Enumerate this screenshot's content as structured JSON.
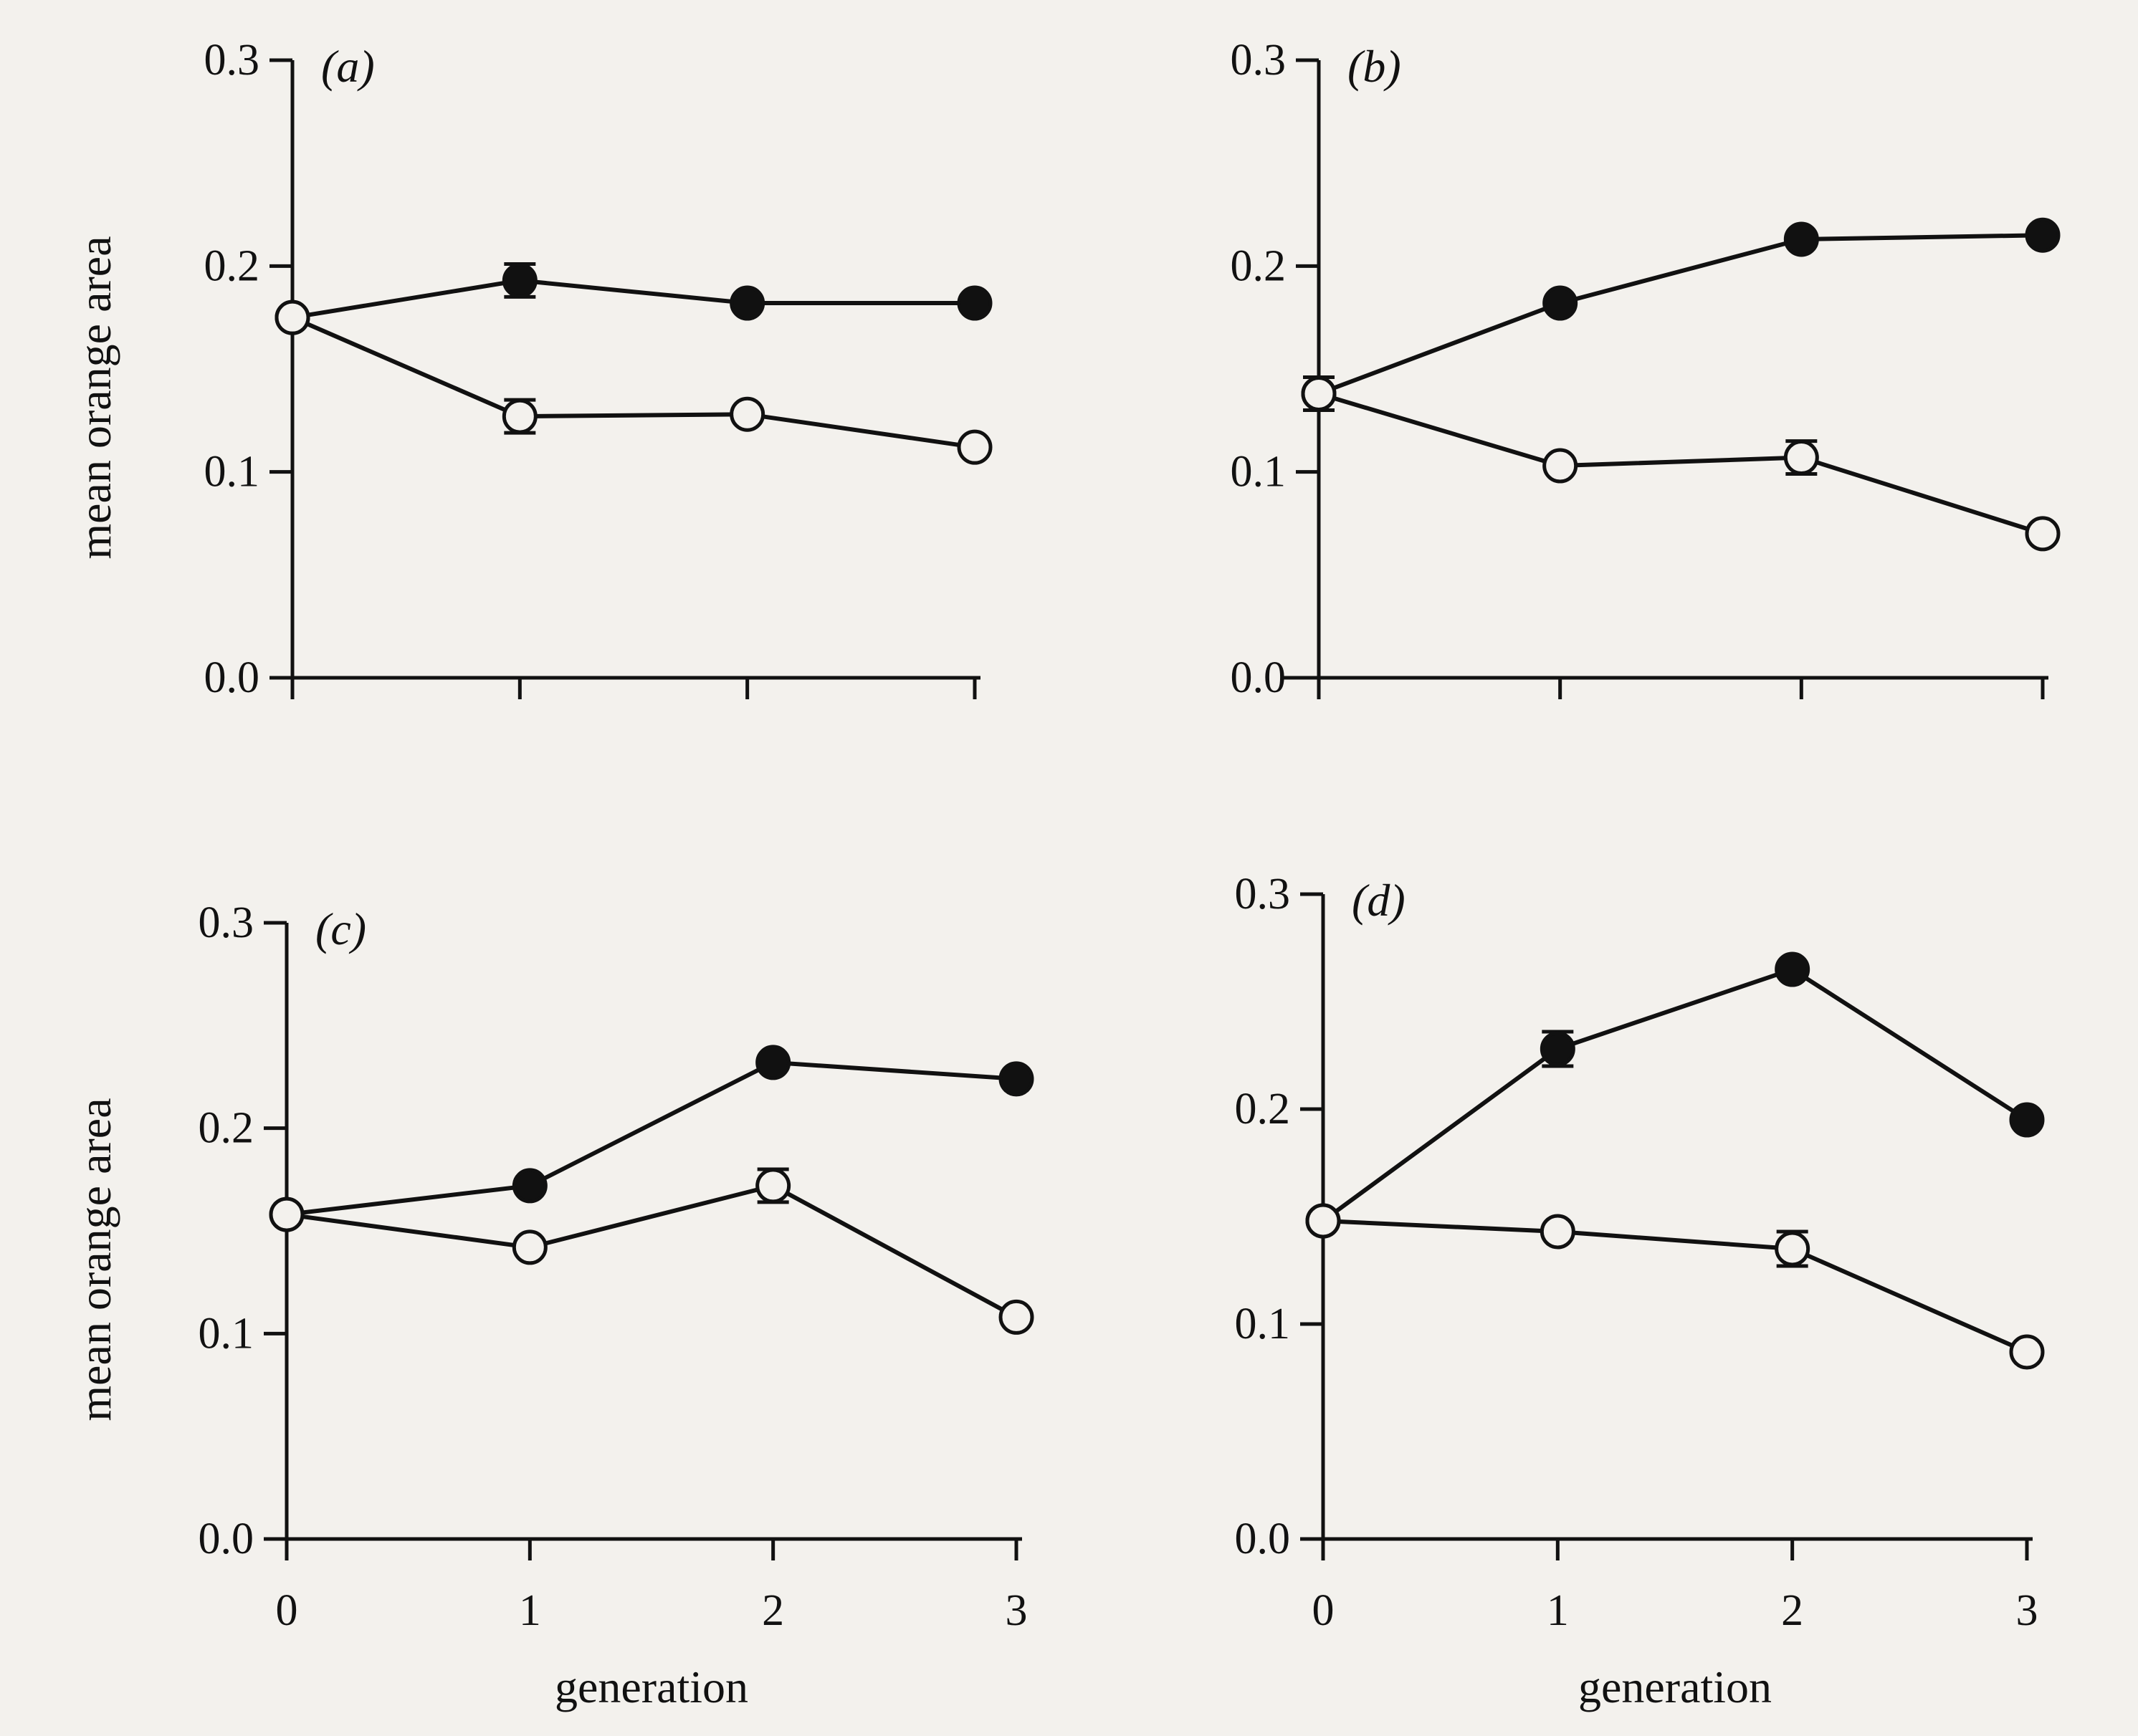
{
  "chart_data": [
    {
      "type": "line",
      "panel_label": "(a)",
      "ylabel": "mean orange area",
      "xlabel": "",
      "ylim": [
        0,
        0.3
      ],
      "yticks": [
        "0.0",
        "0.1",
        "0.2",
        "0.3"
      ],
      "x": [
        0,
        1,
        2,
        3
      ],
      "xticks": [],
      "series": [
        {
          "marker": "filled",
          "values": [
            0.175,
            0.193,
            0.182,
            0.182
          ],
          "err": [
            0,
            0.008,
            0,
            0
          ]
        },
        {
          "marker": "open",
          "values": [
            0.175,
            0.127,
            0.128,
            0.112
          ],
          "err": [
            0,
            0.008,
            0,
            0
          ]
        }
      ]
    },
    {
      "type": "line",
      "panel_label": "(b)",
      "ylabel": "",
      "xlabel": "",
      "ylim": [
        0,
        0.3
      ],
      "yticks": [
        "0.0",
        "0.1",
        "0.2",
        "0.3"
      ],
      "x": [
        0,
        1,
        2,
        3
      ],
      "xticks": [],
      "series": [
        {
          "marker": "filled",
          "values": [
            0.138,
            0.182,
            0.213,
            0.215
          ],
          "err": [
            0.008,
            0,
            0,
            0
          ]
        },
        {
          "marker": "open",
          "values": [
            0.138,
            0.103,
            0.107,
            0.07
          ],
          "err": [
            0.008,
            0,
            0.008,
            0
          ]
        }
      ]
    },
    {
      "type": "line",
      "panel_label": "(c)",
      "ylabel": "mean orange area",
      "xlabel": "generation",
      "ylim": [
        0,
        0.3
      ],
      "yticks": [
        "0.0",
        "0.1",
        "0.2",
        "0.3"
      ],
      "x": [
        0,
        1,
        2,
        3
      ],
      "xticks": [
        "0",
        "1",
        "2",
        "3"
      ],
      "series": [
        {
          "marker": "filled",
          "values": [
            0.158,
            0.172,
            0.232,
            0.224
          ],
          "err": [
            0,
            0,
            0,
            0
          ]
        },
        {
          "marker": "open",
          "values": [
            0.158,
            0.142,
            0.172,
            0.108
          ],
          "err": [
            0,
            0,
            0.008,
            0
          ]
        }
      ]
    },
    {
      "type": "line",
      "panel_label": "(d)",
      "ylabel": "",
      "xlabel": "generation",
      "ylim": [
        0,
        0.3
      ],
      "yticks": [
        "0.0",
        "0.1",
        "0.2",
        "0.3"
      ],
      "x": [
        0,
        1,
        2,
        3
      ],
      "xticks": [
        "0",
        "1",
        "2",
        "3"
      ],
      "series": [
        {
          "marker": "filled",
          "values": [
            0.148,
            0.228,
            0.265,
            0.195
          ],
          "err": [
            0,
            0.008,
            0,
            0
          ]
        },
        {
          "marker": "open",
          "values": [
            0.148,
            0.143,
            0.135,
            0.087
          ],
          "err": [
            0,
            0,
            0.008,
            0
          ]
        }
      ]
    }
  ]
}
